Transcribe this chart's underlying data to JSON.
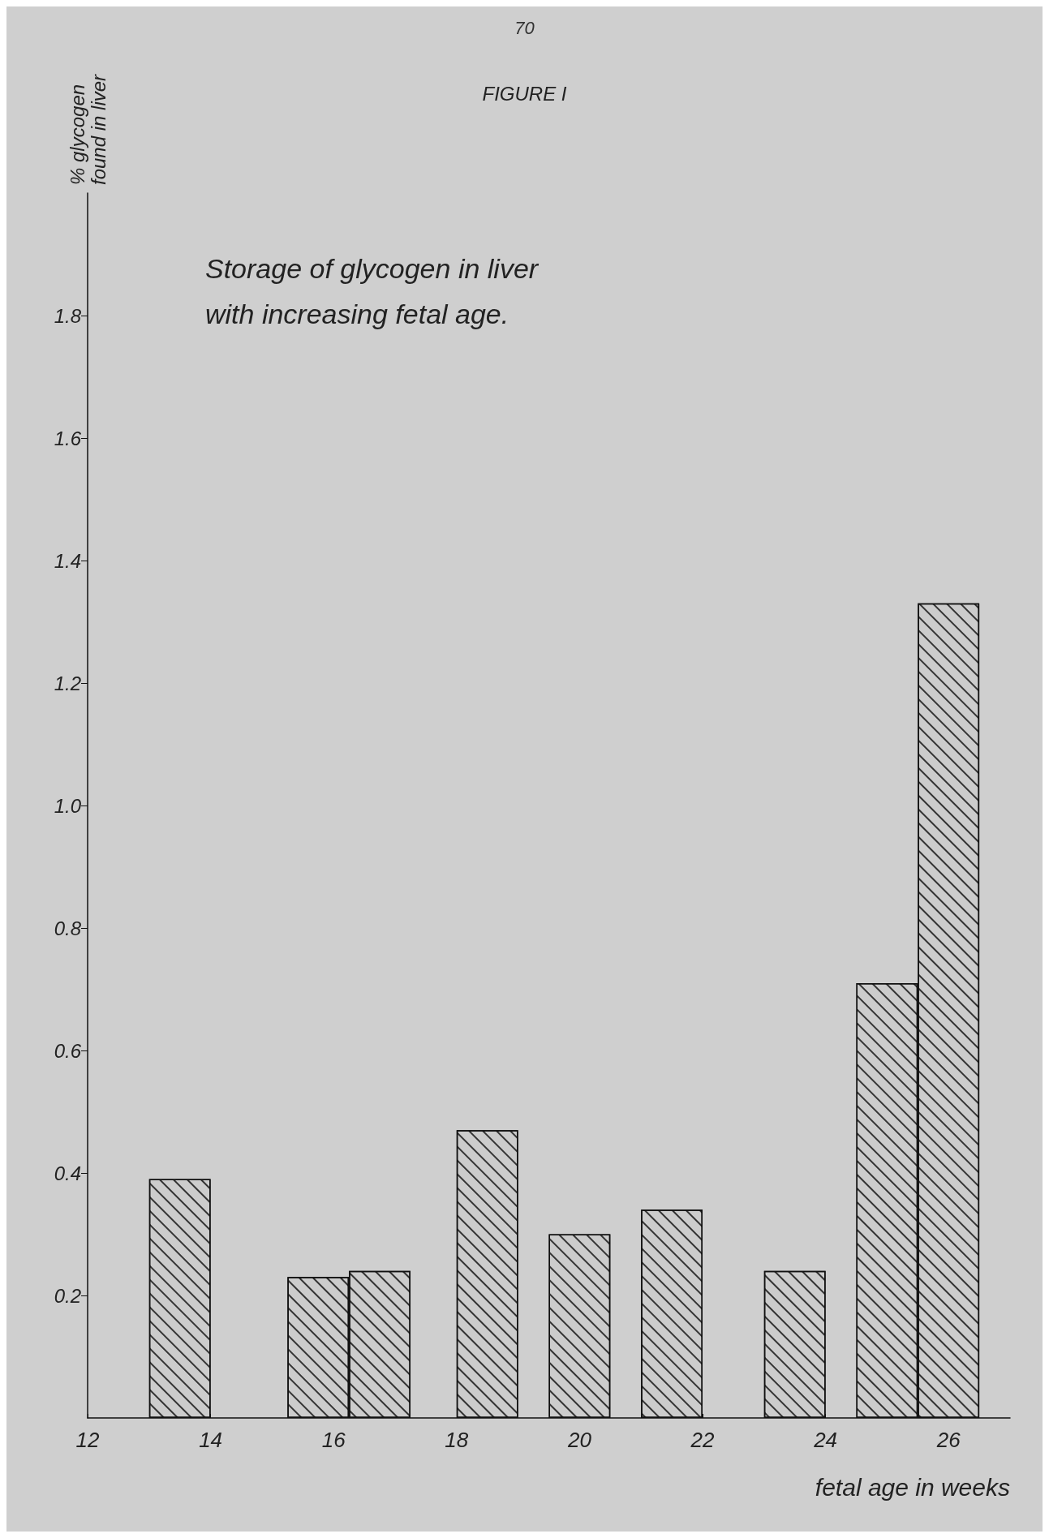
{
  "chart_data": {
    "type": "bar",
    "title": "FIGURE I",
    "subtitle": "Storage of glycogen in liver\nwith increasing fetal age.",
    "xlabel": "fetal age in weeks",
    "ylabel": "% glycogen\nfound in liver",
    "annotations": [
      "70"
    ],
    "x": [
      13.5,
      15.75,
      16.75,
      18.5,
      20,
      21.5,
      23.5,
      25,
      26
    ],
    "values": [
      0.39,
      0.23,
      0.24,
      0.47,
      0.3,
      0.34,
      0.24,
      0.71,
      1.33
    ],
    "color": "#cccccc",
    "xlim": [
      12,
      27
    ],
    "xticks": [
      12,
      14,
      16,
      18,
      20,
      22,
      24,
      26
    ],
    "ylim": [
      0,
      2
    ],
    "yticks": [
      0.2,
      0.4,
      0.6,
      0.8,
      {
        "value": 1.0,
        "label": "1.0"
      },
      1.2,
      1.4,
      1.6,
      1.8
    ],
    "grid": false
  }
}
